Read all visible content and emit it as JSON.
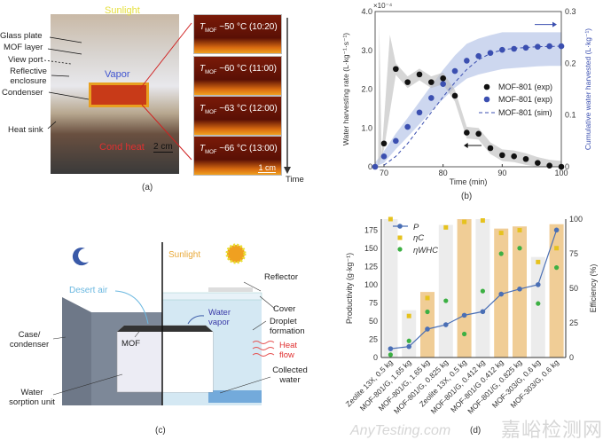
{
  "panel_a": {
    "caption": "(a)",
    "labels": [
      "Glass plate",
      "MOF layer",
      "View port",
      "Reflective enclosure",
      "Condenser",
      "Heat sink"
    ],
    "overlay": {
      "sunlight": "Sunlight",
      "vapor": "Vapor",
      "cond_heat": "Cond heat",
      "scale_photo": "2 cm",
      "scale_frame": "1 cm"
    },
    "frames": [
      {
        "symbol": "T",
        "sub": "MOF",
        "text": "~50 °C (10:20)"
      },
      {
        "symbol": "T",
        "sub": "MOF",
        "text": "~60 °C (11:00)"
      },
      {
        "symbol": "T",
        "sub": "MOF",
        "text": "~63 °C (12:00)"
      },
      {
        "symbol": "T",
        "sub": "MOF",
        "text": "~66 °C (13:00)"
      }
    ],
    "time_label": "Time"
  },
  "panel_c": {
    "caption": "(c)",
    "labels": {
      "sunlight": "Sunlight",
      "reflector": "Reflector",
      "desert_air": "Desert air",
      "cover": "Cover",
      "water_vapor": "Water vapor",
      "droplet": "Droplet formation",
      "case": "Case/ condenser",
      "mof": "MOF",
      "heat_flow": "Heat flow",
      "collected": "Collected water",
      "sorption": "Water sorption unit"
    }
  },
  "chart_data": [
    {
      "type": "line",
      "panel": "(b)",
      "xlabel": "Time (min)",
      "ylabel": "Water harvesting rate (L·kg⁻¹·s⁻¹)",
      "y_multiplier": "×10⁻⁴",
      "ylabel_right": "Cumulative water harvested (L·kg⁻¹)",
      "xlim": [
        68.5,
        100
      ],
      "ylim": [
        0,
        4.0
      ],
      "ylim_right": [
        0,
        0.3
      ],
      "xticks": [
        "70",
        "80",
        "90",
        "100"
      ],
      "yticks": [
        "0",
        "1.0",
        "2.0",
        "3.0",
        "4.0"
      ],
      "yticks_right": [
        "0",
        "0.1",
        "0.2",
        "0.3"
      ],
      "legend_position": "center-right",
      "series": [
        {
          "name": "MOF-801 (exp)",
          "axis": "left",
          "color": "#111111",
          "x": [
            70,
            72,
            74,
            76,
            78,
            80,
            82,
            84,
            86,
            88,
            90,
            92,
            94,
            96,
            98,
            100
          ],
          "y": [
            0.6,
            2.52,
            2.18,
            2.38,
            2.18,
            2.28,
            1.83,
            0.88,
            0.85,
            0.48,
            0.3,
            0.27,
            0.2,
            0.1,
            0.03,
            0.0
          ]
        },
        {
          "name": "MOF-801 (exp)",
          "axis": "right",
          "color": "#3b4fb0",
          "x": [
            68.5,
            70,
            72,
            74,
            76,
            78,
            80,
            82,
            84,
            86,
            88,
            90,
            92,
            94,
            96,
            98,
            100
          ],
          "y": [
            0,
            0.02,
            0.05,
            0.077,
            0.105,
            0.133,
            0.16,
            0.185,
            0.205,
            0.214,
            0.22,
            0.226,
            0.228,
            0.23,
            0.232,
            0.233,
            0.233
          ]
        },
        {
          "name": "MOF-801 (sim)",
          "axis": "right",
          "style": "dashed",
          "color": "#3b4fb0",
          "x": [
            70,
            72,
            74,
            76,
            78,
            80,
            82,
            84,
            86,
            88,
            90,
            92,
            96,
            100
          ],
          "y": [
            0.003,
            0.02,
            0.045,
            0.075,
            0.105,
            0.135,
            0.163,
            0.188,
            0.207,
            0.219,
            0.226,
            0.229,
            0.232,
            0.233
          ]
        }
      ]
    },
    {
      "type": "bar",
      "panel": "(d)",
      "ylabel": "Productivity (g·kg⁻¹)",
      "ylabel_right": "Efficiency (%)",
      "ylim": [
        0,
        190
      ],
      "ylim_right": [
        0,
        100
      ],
      "yticks": [
        "0",
        "25",
        "50",
        "75",
        "100",
        "125",
        "150",
        "175"
      ],
      "yticks_right": [
        "0",
        "25",
        "50",
        "75",
        "100"
      ],
      "legend_position": "top-left",
      "categories": [
        "Zeolite 13X, 0.5 kg",
        "MOF-801/G, 1.65 kg",
        "MOF-801/G, 1.65 kg",
        "MOF-801/G, 0.825 kg",
        "Zeolite 13X, 0.5 kg",
        "MOF-801/G, 0.412 kg",
        "MOF-801/G 0.412 kg",
        "MOF-801/G, 0.825 kg",
        "MOF-303/G, 0.6 kg",
        "MOF-303/G, 0.6 kg"
      ],
      "bars": {
        "values": [
          190,
          65,
          90,
          182,
          190,
          190,
          177,
          180,
          138,
          183
        ],
        "colors": [
          "gray",
          "gray",
          "orange",
          "gray",
          "orange",
          "gray",
          "orange",
          "orange",
          "gray",
          "orange"
        ]
      },
      "series": [
        {
          "name": "P",
          "axis": "left",
          "color": "#4a6fb5",
          "values": [
            12,
            15,
            39,
            45,
            58,
            63,
            87,
            94,
            100,
            175
          ]
        },
        {
          "name": "ηC",
          "axis": "right",
          "color": "#e6c21e",
          "values": [
            100,
            30,
            43,
            94,
            98,
            99,
            90,
            92,
            69,
            79
          ]
        },
        {
          "name": "ηWHC",
          "axis": "right",
          "color": "#3cb043",
          "values": [
            2,
            12,
            33,
            41,
            17,
            48,
            75,
            79,
            39,
            65
          ]
        }
      ]
    }
  ],
  "captions": {
    "b": "(b)",
    "d": "(d)"
  },
  "watermark": {
    "cn": "嘉峪检测网",
    "en": "AnyTesting.com"
  },
  "colors": {
    "gray_bar": "#ececec",
    "orange_bar": "#f0cd96",
    "blue": "#3b4fb0",
    "band": "#b8c6e8"
  }
}
